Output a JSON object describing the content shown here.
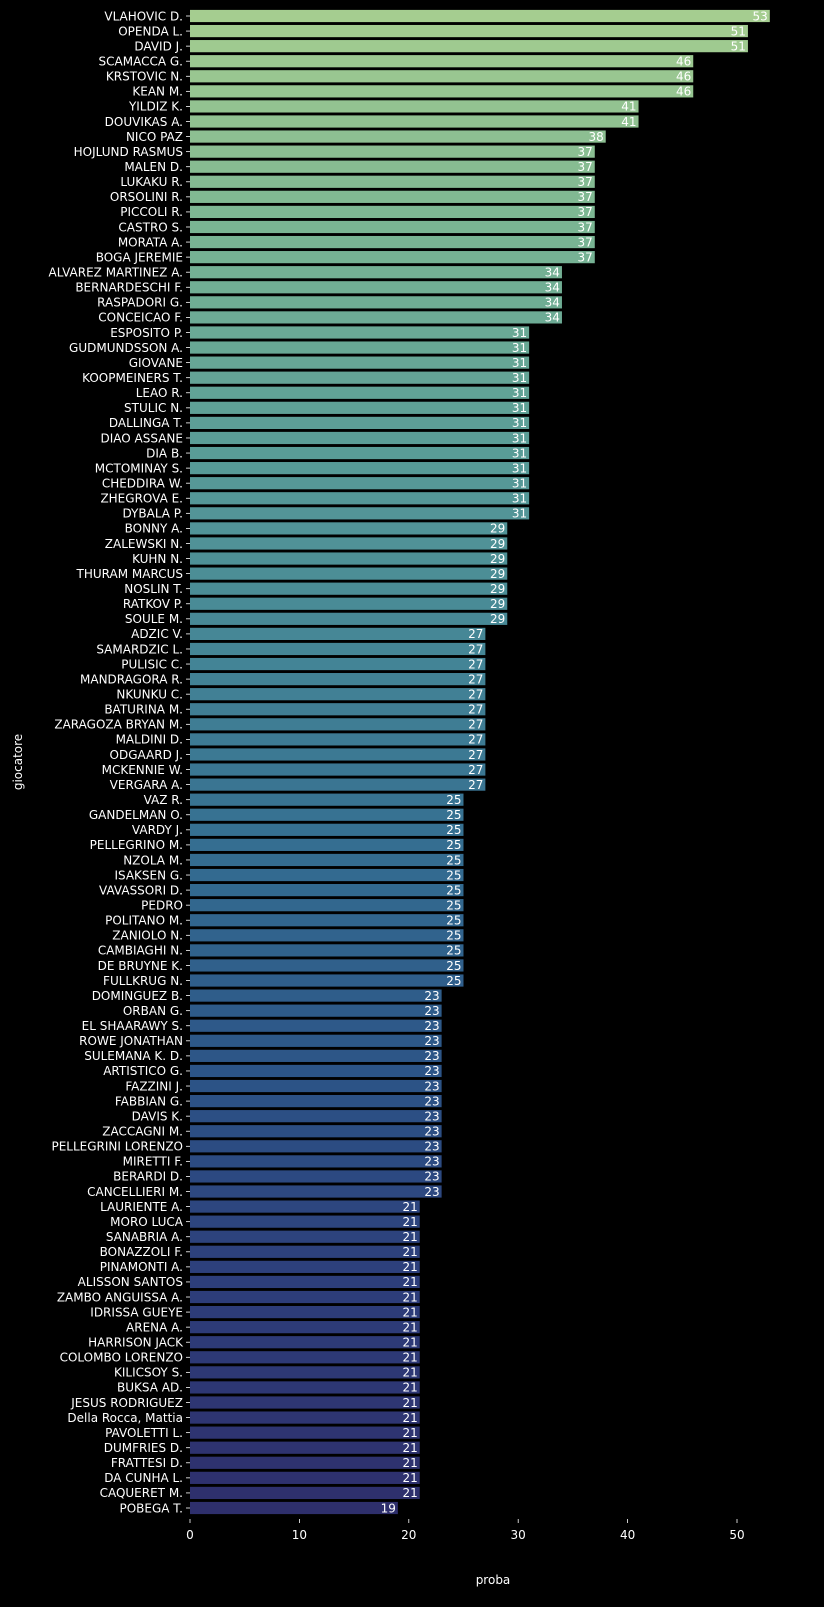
{
  "chart_data": {
    "type": "bar",
    "orientation": "horizontal",
    "xlabel": "proba",
    "ylabel": "giocatore",
    "xlim": [
      0,
      54
    ],
    "xticks": [
      0,
      10,
      20,
      30,
      40,
      50
    ],
    "grid": false,
    "background": "#000000",
    "palette": [
      "#a5cd90",
      "#7ab593",
      "#5a9d97",
      "#448596",
      "#336b90",
      "#2c5386",
      "#2d3d7a",
      "#2e2f6c"
    ],
    "categories": [
      "VLAHOVIC D.",
      "OPENDA L.",
      "DAVID J.",
      "SCAMACCA G.",
      "KRSTOVIC N.",
      "KEAN M.",
      "YILDIZ K.",
      "DOUVIKAS A.",
      "NICO PAZ",
      "HOJLUND RASMUS",
      "MALEN D.",
      "LUKAKU R.",
      "ORSOLINI R.",
      "PICCOLI R.",
      "CASTRO S.",
      "MORATA A.",
      "BOGA JEREMIE",
      "ALVAREZ MARTINEZ A.",
      "BERNARDESCHI F.",
      "RASPADORI G.",
      "CONCEICAO F.",
      "ESPOSITO P.",
      "GUDMUNDSSON A.",
      "GIOVANE",
      "KOOPMEINERS T.",
      "LEAO R.",
      "STULIC N.",
      "DALLINGA T.",
      "DIAO ASSANE",
      "DIA B.",
      "MCTOMINAY S.",
      "CHEDDIRA W.",
      "ZHEGROVA E.",
      "DYBALA P.",
      "BONNY A.",
      "ZALEWSKI N.",
      "KUHN N.",
      "THURAM MARCUS",
      "NOSLIN T.",
      "RATKOV P.",
      "SOULE M.",
      "ADZIC V.",
      "SAMARDZIC L.",
      "PULISIC C.",
      "MANDRAGORA R.",
      "NKUNKU C.",
      "BATURINA M.",
      "ZARAGOZA BRYAN M.",
      "MALDINI D.",
      "ODGAARD J.",
      "MCKENNIE W.",
      "VERGARA A.",
      "VAZ R.",
      "GANDELMAN O.",
      "VARDY J.",
      "PELLEGRINO M.",
      "NZOLA M.",
      "ISAKSEN G.",
      "VAVASSORI D.",
      "PEDRO",
      "POLITANO M.",
      "ZANIOLO N.",
      "CAMBIAGHI N.",
      "DE BRUYNE K.",
      "FULLKRUG N.",
      "DOMINGUEZ B.",
      "ORBAN G.",
      "EL SHAARAWY S.",
      "ROWE JONATHAN",
      "SULEMANA K. D.",
      "ARTISTICO G.",
      "FAZZINI J.",
      "FABBIAN G.",
      "DAVIS K.",
      "ZACCAGNI M.",
      "PELLEGRINI LORENZO",
      "MIRETTI F.",
      "BERARDI D.",
      "CANCELLIERI M.",
      "LAURIENTE A.",
      "MORO LUCA",
      "SANABRIA A.",
      "BONAZZOLI F.",
      "PINAMONTI A.",
      "ALISSON SANTOS",
      "ZAMBO ANGUISSA A.",
      "IDRISSA GUEYE",
      "ARENA A.",
      "HARRISON JACK",
      "COLOMBO LORENZO",
      "KILICSOY S.",
      "BUKSA AD.",
      "JESUS RODRIGUEZ",
      "Della Rocca, Mattia",
      "PAVOLETTI L.",
      "DUMFRIES D.",
      "FRATTESI D.",
      "DA CUNHA L.",
      "CAQUERET M.",
      "POBEGA T."
    ],
    "values": [
      53,
      51,
      51,
      46,
      46,
      46,
      41,
      41,
      38,
      37,
      37,
      37,
      37,
      37,
      37,
      37,
      37,
      34,
      34,
      34,
      34,
      31,
      31,
      31,
      31,
      31,
      31,
      31,
      31,
      31,
      31,
      31,
      31,
      31,
      29,
      29,
      29,
      29,
      29,
      29,
      29,
      27,
      27,
      27,
      27,
      27,
      27,
      27,
      27,
      27,
      27,
      27,
      25,
      25,
      25,
      25,
      25,
      25,
      25,
      25,
      25,
      25,
      25,
      25,
      25,
      23,
      23,
      23,
      23,
      23,
      23,
      23,
      23,
      23,
      23,
      23,
      23,
      23,
      23,
      21,
      21,
      21,
      21,
      21,
      21,
      21,
      21,
      21,
      21,
      21,
      21,
      21,
      21,
      21,
      21,
      21,
      21,
      21,
      21,
      19
    ]
  }
}
